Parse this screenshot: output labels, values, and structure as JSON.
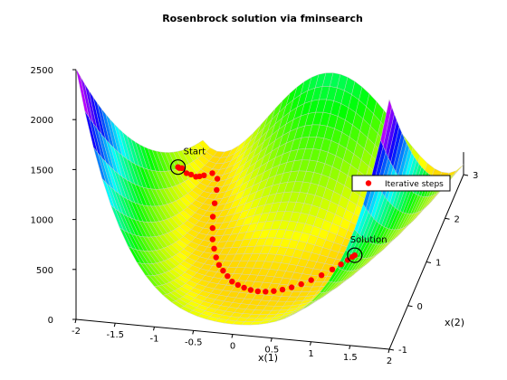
{
  "chart_data": {
    "type": "surface",
    "title": "Rosenbrock solution via fminsearch",
    "xlabel": "x(1)",
    "ylabel": "x(2)",
    "zlabel": "",
    "xlim": [
      -2,
      2
    ],
    "ylim": [
      -1,
      3
    ],
    "zlim": [
      0,
      2500
    ],
    "x_ticks": [
      "-2",
      "-1.5",
      "-1",
      "-0.5",
      "0",
      "0.5",
      "1",
      "1.5",
      "2"
    ],
    "y_ticks": [
      "-1",
      "0",
      "1",
      "2",
      "3"
    ],
    "z_ticks": [
      "0",
      "500",
      "1000",
      "1500",
      "2000",
      "2500"
    ],
    "surface": "100*(x2 - x1^2)^2 + (1 - x1)^2",
    "colormap": "hsv",
    "series": [
      {
        "name": "Iterative steps",
        "color": "#ff0000",
        "points": [
          [
            -1.9,
            2.0,
            267.6
          ],
          [
            -1.88,
            2.0,
            259.0
          ],
          [
            -1.85,
            2.02,
            251.6
          ],
          [
            -1.82,
            2.1,
            168.9
          ],
          [
            -1.8,
            2.2,
            115.2
          ],
          [
            -1.75,
            2.25,
            75.3
          ],
          [
            -1.72,
            2.3,
            59.8
          ],
          [
            -1.7,
            2.4,
            28.6
          ],
          [
            -1.62,
            2.5,
            12.4
          ],
          [
            -1.5,
            2.4,
            6.5
          ],
          [
            -1.4,
            2.15,
            7.2
          ],
          [
            -1.3,
            1.85,
            6.3
          ],
          [
            -1.2,
            1.55,
            5.9
          ],
          [
            -1.1,
            1.3,
            4.4
          ],
          [
            -1.0,
            1.05,
            4.3
          ],
          [
            -0.9,
            0.85,
            3.6
          ],
          [
            -0.8,
            0.66,
            3.2
          ],
          [
            -0.7,
            0.5,
            2.9
          ],
          [
            -0.6,
            0.38,
            2.6
          ],
          [
            -0.5,
            0.27,
            2.3
          ],
          [
            -0.4,
            0.16,
            1.96
          ],
          [
            -0.3,
            0.1,
            1.69
          ],
          [
            -0.2,
            0.05,
            1.44
          ],
          [
            -0.1,
            0.015,
            1.21
          ],
          [
            0.0,
            0.0,
            1.0
          ],
          [
            0.1,
            0.01,
            0.81
          ],
          [
            0.2,
            0.04,
            0.64
          ],
          [
            0.3,
            0.09,
            0.49
          ],
          [
            0.4,
            0.16,
            0.36
          ],
          [
            0.5,
            0.25,
            0.25
          ],
          [
            0.6,
            0.36,
            0.16
          ],
          [
            0.7,
            0.49,
            0.09
          ],
          [
            0.8,
            0.64,
            0.04
          ],
          [
            0.88,
            0.77,
            0.015
          ],
          [
            0.94,
            0.88,
            0.004
          ],
          [
            0.98,
            0.96,
            0.0004
          ],
          [
            1.0,
            1.0,
            0.0
          ]
        ]
      }
    ],
    "annotations": [
      {
        "text": "Start",
        "x": -1.9,
        "y": 2.0,
        "z": 267.6
      },
      {
        "text": "Solution",
        "x": 1.0,
        "y": 1.0,
        "z": 0.0
      }
    ],
    "legend": {
      "placement": "top-right",
      "entries": [
        "Iterative steps"
      ]
    },
    "grid": false
  }
}
